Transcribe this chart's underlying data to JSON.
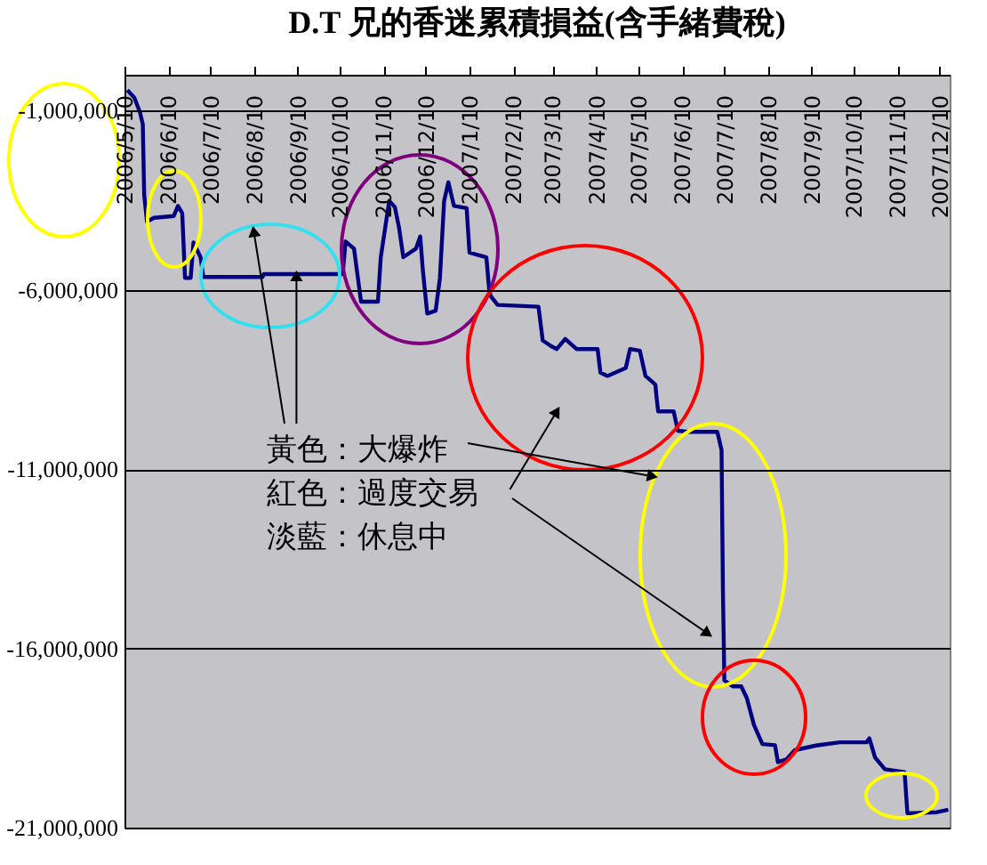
{
  "chart_data": {
    "type": "line",
    "title": "D.T 兄的香迷累積損益(含手緒費稅)",
    "x": [
      "2006-05-12",
      "2006-05-17",
      "2006-05-21",
      "2006-05-23",
      "2006-05-24",
      "2006-05-26",
      "2006-05-31",
      "2006-06-14",
      "2006-06-17",
      "2006-06-20",
      "2006-06-22",
      "2006-06-26",
      "2006-06-28",
      "2006-07-03",
      "2006-07-05",
      "2006-08-16",
      "2006-08-17",
      "2006-10-12",
      "2006-10-14",
      "2006-10-20",
      "2006-10-25",
      "2006-11-06",
      "2006-11-08",
      "2006-11-14",
      "2006-11-18",
      "2006-11-21",
      "2006-11-24",
      "2006-12-03",
      "2006-12-06",
      "2006-12-08",
      "2006-12-11",
      "2006-12-17",
      "2006-12-20",
      "2006-12-23",
      "2006-12-26",
      "2006-12-30",
      "2007-01-08",
      "2007-01-10",
      "2007-01-22",
      "2007-01-24",
      "2007-01-25",
      "2007-01-30",
      "2007-02-28",
      "2007-03-03",
      "2007-03-09",
      "2007-03-13",
      "2007-03-19",
      "2007-03-27",
      "2007-04-11",
      "2007-04-13",
      "2007-04-18",
      "2007-05-01",
      "2007-05-04",
      "2007-05-11",
      "2007-05-15",
      "2007-05-22",
      "2007-05-23",
      "2007-05-24",
      "2007-06-04",
      "2007-06-07",
      "2007-06-14",
      "2007-07-05",
      "2007-07-08",
      "2007-07-09",
      "2007-07-10",
      "2007-07-16",
      "2007-07-22",
      "2007-07-26",
      "2007-07-31",
      "2007-08-06",
      "2007-08-15",
      "2007-08-17",
      "2007-08-23",
      "2007-08-29",
      "2007-09-13",
      "2007-09-30",
      "2007-10-19",
      "2007-10-21",
      "2007-10-25",
      "2007-11-01",
      "2007-11-15",
      "2007-11-17",
      "2007-12-08",
      "2007-12-16"
    ],
    "series": [
      {
        "color": "#000080",
        "values": [
          -430000,
          -640000,
          -1050000,
          -1380000,
          -3360000,
          -4100000,
          -3990000,
          -3940000,
          -3660000,
          -3860000,
          -5670000,
          -5670000,
          -4680000,
          -5090000,
          -5640000,
          -5640000,
          -5560000,
          -5560000,
          -4650000,
          -4850000,
          -6330000,
          -6330000,
          -5090000,
          -3520000,
          -3690000,
          -4270000,
          -5090000,
          -4850000,
          -4510000,
          -5500000,
          -6660000,
          -6580000,
          -5670000,
          -3520000,
          -3000000,
          -3660000,
          -3720000,
          -4960000,
          -5090000,
          -6000000,
          -6170000,
          -6420000,
          -6470000,
          -7410000,
          -7570000,
          -7650000,
          -7370000,
          -7650000,
          -7650000,
          -8310000,
          -8400000,
          -8180000,
          -7650000,
          -7700000,
          -8400000,
          -8640000,
          -9050000,
          -9390000,
          -9390000,
          -9930000,
          -9960000,
          -9960000,
          -10460000,
          -14400000,
          -16890000,
          -17060000,
          -17060000,
          -17390000,
          -18130000,
          -18670000,
          -18700000,
          -19170000,
          -19100000,
          -18840000,
          -18710000,
          -18620000,
          -18620000,
          -18510000,
          -19040000,
          -19370000,
          -19450000,
          -20600000,
          -20570000,
          -20500000
        ]
      }
    ],
    "xlim": [
      "2006-05-10",
      "2007-12-17"
    ],
    "xticks": [
      {
        "value": "2006-05-10",
        "label": "2006/5/10"
      },
      {
        "value": "2006-06-10",
        "label": "2006/6/10"
      },
      {
        "value": "2006-07-10",
        "label": "2006/7/10"
      },
      {
        "value": "2006-08-10",
        "label": "2006/8/10"
      },
      {
        "value": "2006-09-10",
        "label": "2006/9/10"
      },
      {
        "value": "2006-10-10",
        "label": "2006/10/10"
      },
      {
        "value": "2006-11-10",
        "label": "2006/11/10"
      },
      {
        "value": "2006-12-10",
        "label": "2006/12/10"
      },
      {
        "value": "2007-01-10",
        "label": "2007/1/10"
      },
      {
        "value": "2007-02-10",
        "label": "2007/2/10"
      },
      {
        "value": "2007-03-10",
        "label": "2007/3/10"
      },
      {
        "value": "2007-04-10",
        "label": "2007/4/10"
      },
      {
        "value": "2007-05-10",
        "label": "2007/5/10"
      },
      {
        "value": "2007-06-10",
        "label": "2007/6/10"
      },
      {
        "value": "2007-07-10",
        "label": "2007/7/10"
      },
      {
        "value": "2007-08-10",
        "label": "2007/8/10"
      },
      {
        "value": "2007-09-10",
        "label": "2007/9/10"
      },
      {
        "value": "2007-10-10",
        "label": "2007/10/10"
      },
      {
        "value": "2007-11-10",
        "label": "2007/11/10"
      },
      {
        "value": "2007-12-10",
        "label": "2007/12/10"
      }
    ],
    "ylim": [
      -21000000,
      0
    ],
    "yticks": [
      {
        "value": -1000000,
        "label": "-1,000,000"
      },
      {
        "value": -6000000,
        "label": "-6,000,000"
      },
      {
        "value": -11000000,
        "label": "-11,000,000"
      },
      {
        "value": -16000000,
        "label": "-16,000,000"
      },
      {
        "value": -21000000,
        "label": "-21,000,000"
      }
    ],
    "grid": "y",
    "annotations": [
      {
        "text": "黃色：大爆炸",
        "x": "2007-05-20",
        "y": -11200000
      },
      {
        "text": "紅色：過度交易",
        "x": "2007-03-13",
        "y": -9390000
      },
      "淡藍：休息中"
    ]
  }
}
